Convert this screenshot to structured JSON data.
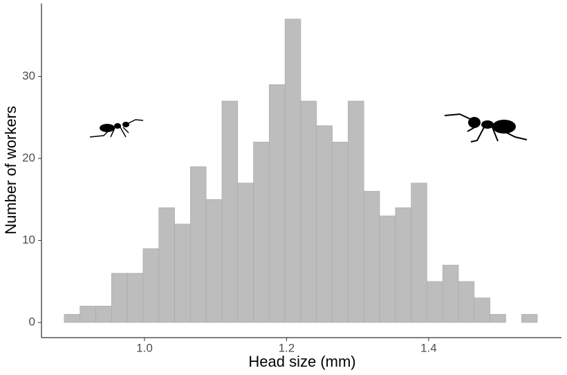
{
  "chart_data": {
    "type": "histogram",
    "xlabel": "Head size (mm)",
    "ylabel": "Number of workers",
    "bins": [
      0.887,
      0.9092,
      0.9314,
      0.9536,
      0.9758,
      0.998,
      1.0202,
      1.0424,
      1.0646,
      1.0868,
      1.109,
      1.1312,
      1.1534,
      1.1756,
      1.1978,
      1.22,
      1.2422,
      1.2644,
      1.2866,
      1.3088,
      1.331,
      1.3532,
      1.3754,
      1.3976,
      1.4198,
      1.442,
      1.4642,
      1.4864,
      1.5086,
      1.5308,
      1.553
    ],
    "values": [
      1,
      2,
      2,
      6,
      6,
      9,
      14,
      12,
      19,
      15,
      27,
      17,
      22,
      29,
      37,
      27,
      24,
      22,
      27,
      16,
      13,
      14,
      17,
      5,
      7,
      5,
      3,
      1,
      0,
      1
    ],
    "color": "#bdbdbd",
    "xlim": [
      0.855,
      1.587
    ],
    "ylim": [
      -1.85,
      38.9
    ],
    "xticks": [
      {
        "value": 1.0,
        "label": "1.0"
      },
      {
        "value": 1.2,
        "label": "1.2"
      },
      {
        "value": 1.4,
        "label": "1.4"
      }
    ],
    "yticks": [
      0,
      10,
      20,
      30
    ]
  }
}
